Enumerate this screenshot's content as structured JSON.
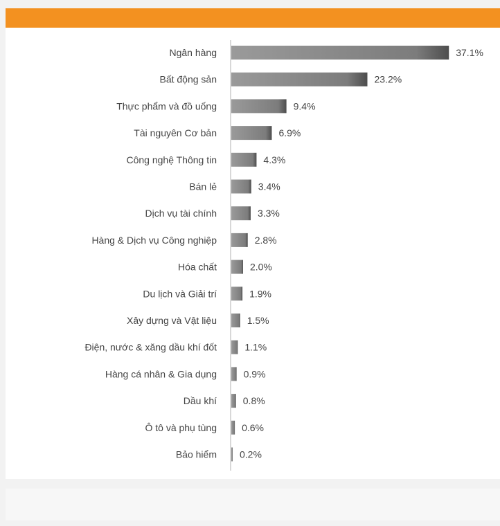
{
  "chart_data": {
    "type": "bar",
    "orientation": "horizontal",
    "categories": [
      "Ngân hàng",
      "Bất động sản",
      "Thực phẩm và đồ uống",
      "Tài nguyên Cơ bản",
      "Công nghệ Thông tin",
      "Bán lẻ",
      "Dịch vụ tài chính",
      "Hàng & Dịch vụ Công nghiệp",
      "Hóa chất",
      "Du lịch và Giải trí",
      "Xây dựng và Vật liệu",
      "Điện, nước & xăng dầu khí đốt",
      "Hàng cá nhân & Gia dụng",
      "Dầu khí",
      "Ô tô và phụ tùng",
      "Bảo hiểm"
    ],
    "values": [
      37.1,
      23.2,
      9.4,
      6.9,
      4.3,
      3.4,
      3.3,
      2.8,
      2.0,
      1.9,
      1.5,
      1.1,
      0.9,
      0.8,
      0.6,
      0.2
    ],
    "value_labels": [
      "37.1%",
      "23.2%",
      "9.4%",
      "6.9%",
      "4.3%",
      "3.4%",
      "3.3%",
      "2.8%",
      "2.0%",
      "1.9%",
      "1.5%",
      "1.1%",
      "0.9%",
      "0.8%",
      "0.6%",
      "0.2%"
    ],
    "title": "",
    "xlabel": "",
    "ylabel": "",
    "grid": false,
    "legend": "none",
    "bar_color": "#8a8a8a",
    "bar_shade_color": "#4d4d4d"
  },
  "colors": {
    "banner": "#f39120",
    "panel": "#ffffff",
    "background": "#f2f2f2",
    "text": "#444444",
    "axis": "#b0b0b0"
  }
}
